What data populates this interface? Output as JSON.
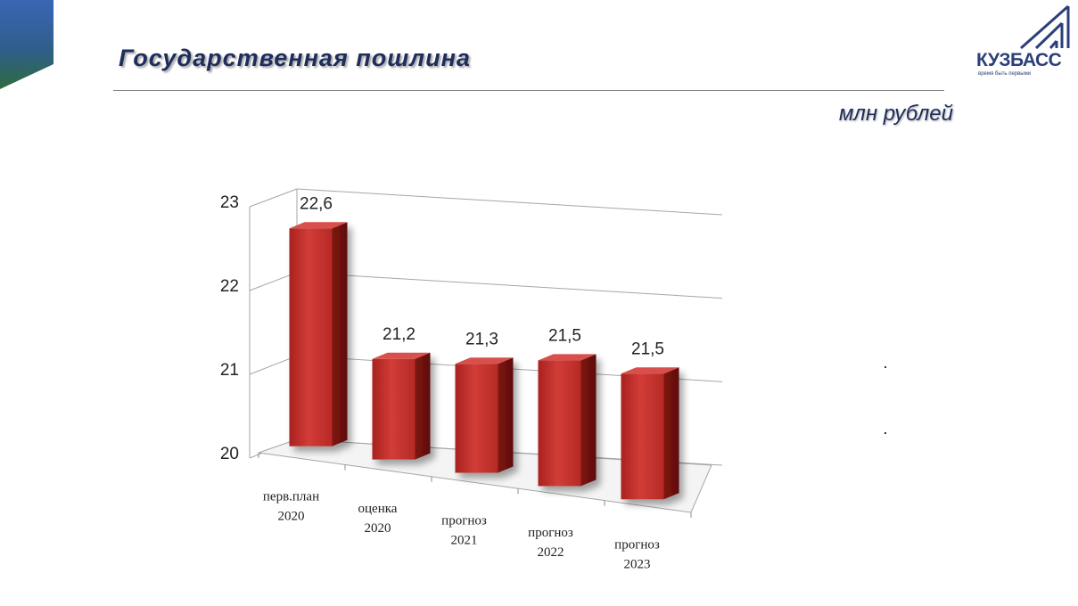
{
  "slide": {
    "title": "Государственная  пошлина",
    "unit": "млн рублей"
  },
  "logo": {
    "name": "КУЗБАСС",
    "tagline": "время быть первыми"
  },
  "colors": {
    "title": "#1f2d5c",
    "bar": "#c0302c",
    "corner_top": "#3a66b5",
    "corner_bottom": "#2f6b3e"
  },
  "chart_data": {
    "type": "bar",
    "categories": [
      "перв.план 2020",
      "оценка 2020",
      "прогноз 2021",
      "прогноз 2022",
      "прогноз 2023"
    ],
    "category_lines": [
      [
        "перв.план",
        "2020"
      ],
      [
        "оценка",
        "2020"
      ],
      [
        "прогноз",
        "2021"
      ],
      [
        "прогноз",
        "2022"
      ],
      [
        "прогноз",
        "2023"
      ]
    ],
    "values": [
      22.6,
      21.2,
      21.3,
      21.5,
      21.5
    ],
    "value_labels": [
      "22,6",
      "21,2",
      "21,3",
      "21,5",
      "21,5"
    ],
    "yticks": [
      "20",
      "21",
      "22",
      "23"
    ],
    "ylim": [
      20,
      23
    ],
    "gridlines": true,
    "three_d": true
  }
}
